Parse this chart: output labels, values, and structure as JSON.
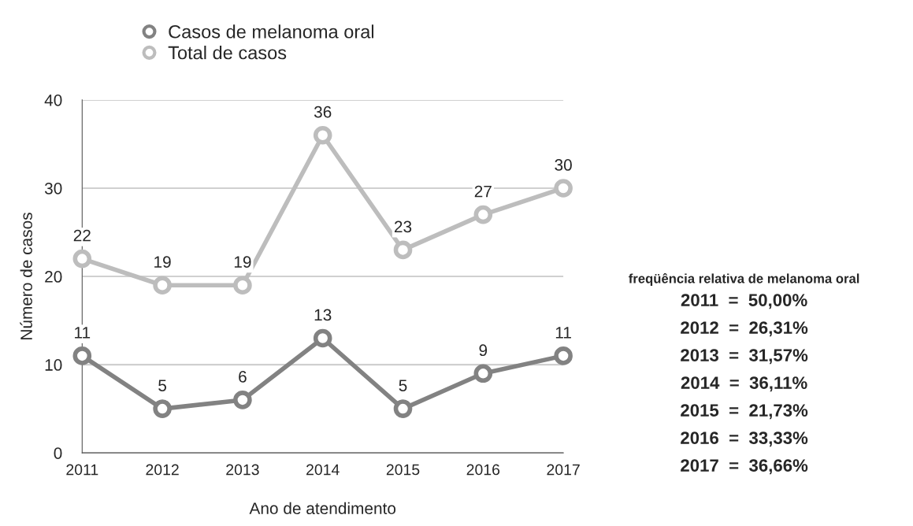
{
  "chart_data": {
    "type": "line",
    "xlabel": "Ano de atendimento",
    "ylabel": "Número de casos",
    "categories": [
      "2011",
      "2012",
      "2013",
      "2014",
      "2015",
      "2016",
      "2017"
    ],
    "series": [
      {
        "name": "Casos de melanoma oral",
        "color": "#828282",
        "values": [
          11,
          5,
          6,
          13,
          5,
          9,
          11
        ]
      },
      {
        "name": "Total de casos",
        "color": "#bdbdbd",
        "values": [
          22,
          19,
          19,
          36,
          23,
          27,
          30
        ]
      }
    ],
    "ylim": [
      0,
      40
    ],
    "yticks": [
      0,
      10,
      20,
      30,
      40
    ],
    "grid": "y",
    "legend": "top left",
    "marker": "circle",
    "line_style": "solid",
    "data_labels": true,
    "annotations": [
      "freqüência relativa de melanoma oral",
      "2011  =  50,00%",
      "2012  =  26,31%",
      "2013  =  31,57%",
      "2014  =  36,11%",
      "2015  =  21,73%",
      "2016  =  33,33%",
      "2017  =  36,66%"
    ]
  }
}
